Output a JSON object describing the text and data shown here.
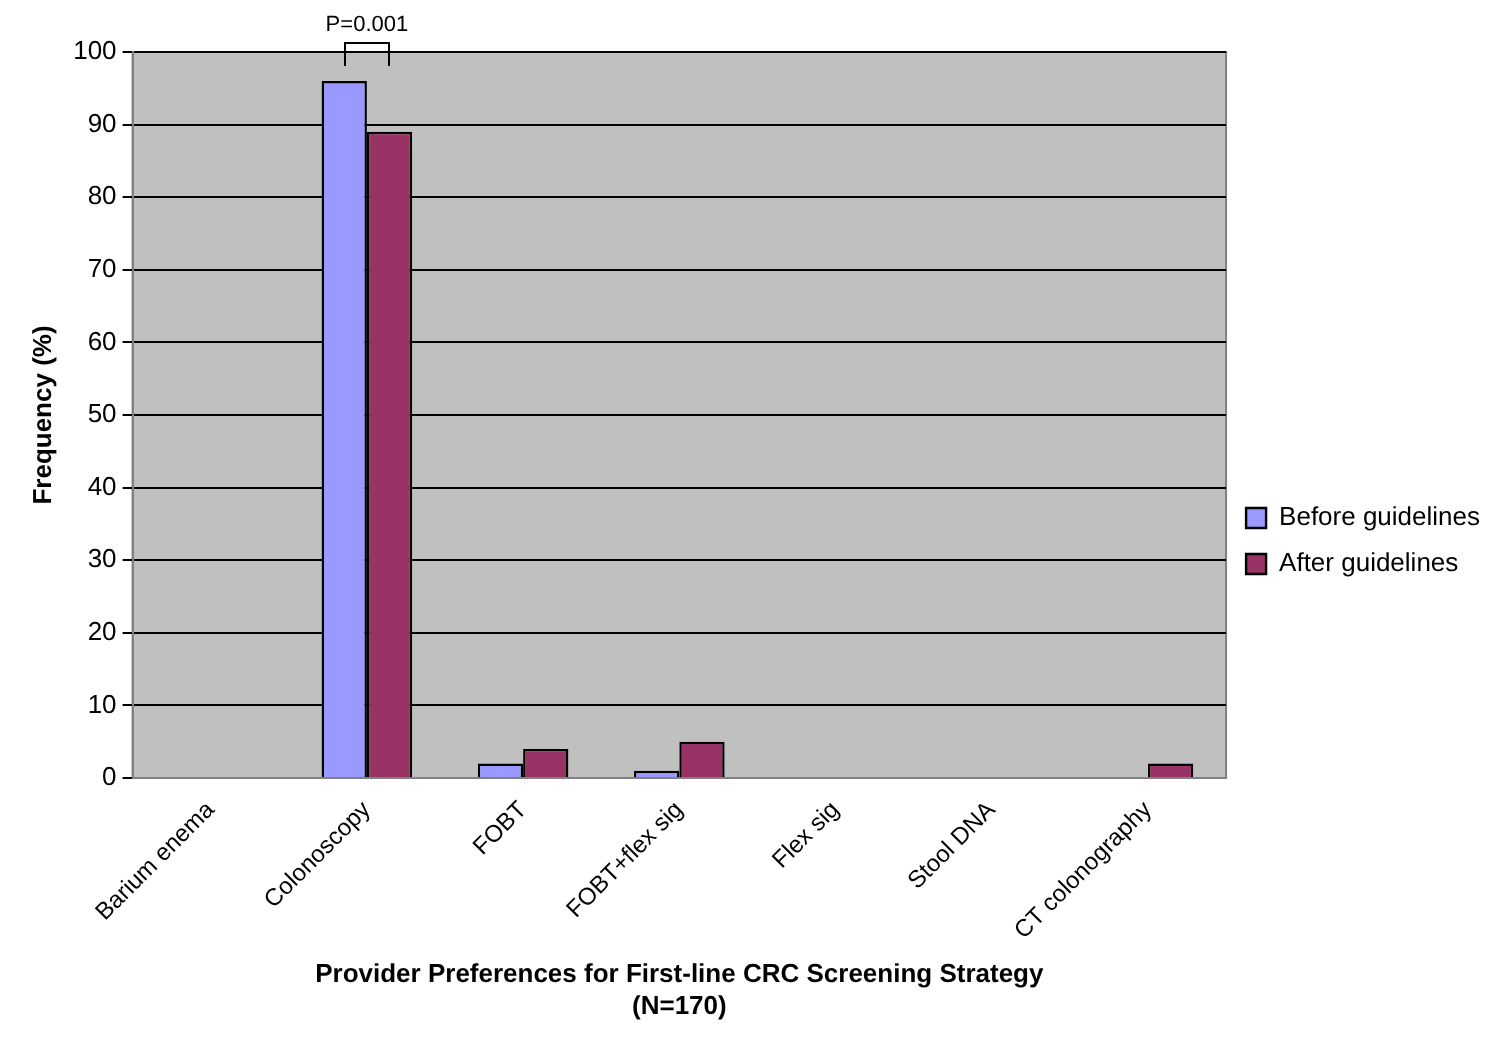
{
  "chart_data": {
    "type": "bar",
    "categories": [
      "Barium enema",
      "Colonoscopy",
      "FOBT",
      "FOBT+flex sig",
      "Flex sig",
      "Stool DNA",
      "CT colonography"
    ],
    "series": [
      {
        "name": "Before guidelines",
        "color": "#9999ff",
        "values": [
          0,
          96,
          2,
          1,
          0,
          0,
          0
        ]
      },
      {
        "name": "After guidelines",
        "color": "#993366",
        "values": [
          0,
          89,
          4,
          5,
          0,
          0,
          2
        ]
      }
    ],
    "xlabel": "Provider Preferences for First-line CRC Screening Strategy\n(N=170)",
    "ylabel": "Frequency (%)",
    "ylim": [
      0,
      100
    ],
    "yticks": [
      0,
      10,
      20,
      30,
      40,
      50,
      60,
      70,
      80,
      90,
      100
    ],
    "grid": "y",
    "legend": "right",
    "annotations": [
      "P=0.001"
    ]
  }
}
